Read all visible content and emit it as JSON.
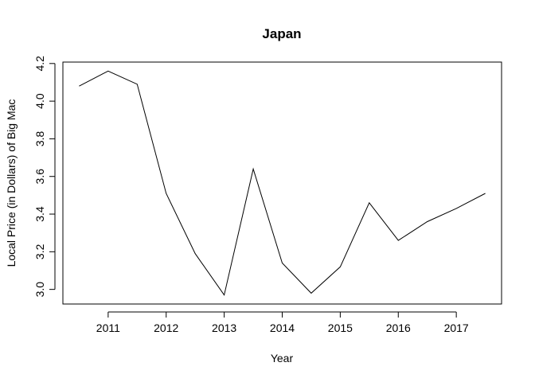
{
  "chart_data": {
    "type": "line",
    "title": "Japan",
    "xlabel": "Year",
    "ylabel": "Local Price (in Dollars) of Big Mac",
    "x": [
      2010.5,
      2011.0,
      2011.5,
      2012.0,
      2012.5,
      2013.0,
      2013.5,
      2014.0,
      2014.5,
      2015.0,
      2015.5,
      2016.0,
      2016.5,
      2017.0,
      2017.5
    ],
    "values": [
      4.08,
      4.16,
      4.09,
      3.51,
      3.19,
      2.97,
      3.64,
      3.14,
      2.98,
      3.12,
      3.46,
      3.26,
      3.36,
      3.43,
      3.51
    ],
    "xlim": [
      2010.5,
      2017.5
    ],
    "ylim": [
      2.97,
      4.16
    ],
    "x_ticks": [
      "2011",
      "2012",
      "2013",
      "2014",
      "2015",
      "2016",
      "2017"
    ],
    "y_ticks": [
      "3.0",
      "3.2",
      "3.4",
      "3.6",
      "3.8",
      "4.0",
      "4.2"
    ],
    "grid": false,
    "line_color": "#000000"
  }
}
